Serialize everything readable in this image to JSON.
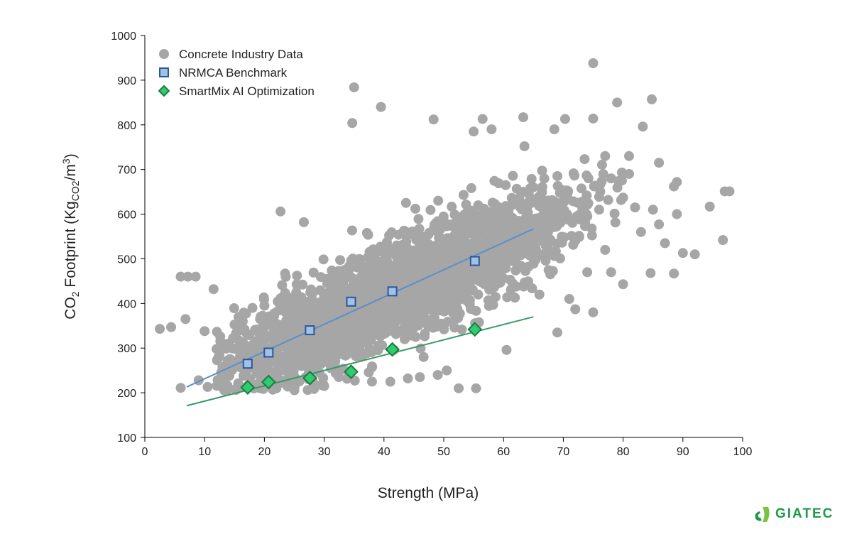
{
  "chart_data": {
    "type": "scatter",
    "xlabel": "Strength (MPa)",
    "ylabel": {
      "main": "CO",
      "sub1": "2",
      "rest": " Footprint (Kg",
      "sub2": "CO2",
      "mid": "/m",
      "sup": "3",
      "end": ")"
    },
    "xlim": [
      0,
      100
    ],
    "ylim": [
      100,
      1000
    ],
    "xticks": [
      0,
      10,
      20,
      30,
      40,
      50,
      60,
      70,
      80,
      90,
      100
    ],
    "yticks": [
      100,
      200,
      300,
      400,
      500,
      600,
      700,
      800,
      900,
      1000
    ],
    "grid": false,
    "legend_position": "top-left",
    "legend": [
      "Concrete Industry Data",
      "NRMCA Benchmark",
      "SmartMix AI Optimization"
    ],
    "series": [
      {
        "name": "Concrete Industry Data",
        "color": "#a6a6a6",
        "cloud": {
          "count": 2600,
          "x_center": 42,
          "x_spread": 14,
          "y_intercept": 170,
          "y_slope": 6.1,
          "y_noise": 55,
          "seed": 7
        },
        "points": [
          [
            2.5,
            343
          ],
          [
            4.4,
            347
          ],
          [
            6,
            460
          ],
          [
            7.2,
            460
          ],
          [
            8.5,
            460
          ],
          [
            6,
            211
          ],
          [
            6.8,
            365
          ],
          [
            10,
            338
          ],
          [
            11.5,
            432
          ],
          [
            12,
            298
          ],
          [
            9,
            228
          ],
          [
            10.5,
            213
          ],
          [
            22.7,
            606
          ],
          [
            26.6,
            582
          ],
          [
            35,
            884
          ],
          [
            34.7,
            804
          ],
          [
            39.5,
            840
          ],
          [
            48.3,
            812
          ],
          [
            55,
            785
          ],
          [
            56.5,
            813
          ],
          [
            58,
            790
          ],
          [
            63.3,
            817
          ],
          [
            63.5,
            752
          ],
          [
            75,
            938
          ],
          [
            75,
            814
          ],
          [
            70.3,
            813
          ],
          [
            68.5,
            790
          ],
          [
            79,
            850
          ],
          [
            84.8,
            857
          ],
          [
            83.3,
            796
          ],
          [
            86,
            715
          ],
          [
            89,
            672
          ],
          [
            88.5,
            662
          ],
          [
            97,
            651
          ],
          [
            97.8,
            651
          ],
          [
            94.5,
            617
          ],
          [
            96.7,
            542
          ],
          [
            92,
            510
          ],
          [
            90,
            513
          ],
          [
            88.5,
            467
          ],
          [
            84.6,
            468
          ],
          [
            80,
            443
          ],
          [
            72,
            387
          ],
          [
            69,
            335
          ],
          [
            55.4,
            210
          ],
          [
            52.5,
            210
          ],
          [
            50.5,
            250
          ],
          [
            60.5,
            296
          ],
          [
            77,
            730
          ],
          [
            81,
            730
          ],
          [
            81,
            690
          ],
          [
            78,
            680
          ],
          [
            80,
            637
          ],
          [
            82,
            615
          ],
          [
            85,
            610
          ],
          [
            86,
            577
          ],
          [
            87,
            535
          ],
          [
            89,
            600
          ],
          [
            83,
            560
          ],
          [
            76,
            610
          ],
          [
            77,
            520
          ],
          [
            78,
            470
          ],
          [
            74,
            470
          ],
          [
            75,
            380
          ],
          [
            71,
            410
          ],
          [
            66,
            420
          ],
          [
            65,
            660
          ],
          [
            66,
            640
          ],
          [
            68,
            580
          ],
          [
            73,
            600
          ],
          [
            70,
            650
          ],
          [
            72,
            540
          ],
          [
            18,
            390
          ],
          [
            20,
            395
          ],
          [
            16,
            270
          ],
          [
            14,
            240
          ],
          [
            13,
            220
          ],
          [
            22,
            210
          ],
          [
            25,
            215
          ],
          [
            30,
            215
          ],
          [
            38,
            225
          ],
          [
            44,
            232
          ],
          [
            46,
            235
          ],
          [
            49,
            240
          ]
        ]
      },
      {
        "name": "NRMCA Benchmark",
        "color": "#9dc3e6",
        "edge": "#2f5597",
        "line_color": "#5b8fc9",
        "points": [
          [
            17.2,
            265
          ],
          [
            20.7,
            290
          ],
          [
            27.6,
            340
          ],
          [
            34.5,
            404
          ],
          [
            41.4,
            427
          ],
          [
            55.2,
            495
          ]
        ],
        "trend": [
          [
            7,
            213
          ],
          [
            65,
            567
          ]
        ]
      },
      {
        "name": "SmartMix AI Optimization",
        "color": "#2ecc71",
        "edge": "#1e7a3c",
        "line_color": "#3a9a66",
        "points": [
          [
            17.2,
            212
          ],
          [
            20.7,
            224
          ],
          [
            27.6,
            233
          ],
          [
            34.5,
            247
          ],
          [
            41.4,
            297
          ],
          [
            55.2,
            342
          ]
        ],
        "trend": [
          [
            7,
            171
          ],
          [
            65,
            370
          ]
        ]
      }
    ]
  },
  "logo": {
    "text": "GIATEC",
    "color": "#1e9a4a"
  }
}
